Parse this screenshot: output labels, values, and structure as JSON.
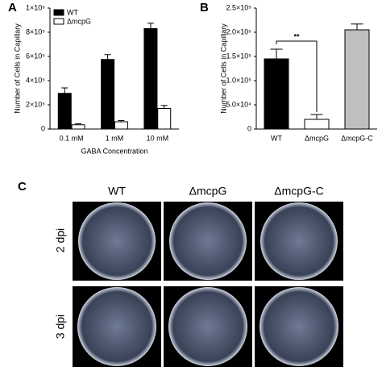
{
  "chart_data": [
    {
      "type": "bar",
      "label": "A",
      "ylabel": "Number of Cells in Capillary",
      "xlabel": "GABA Concentration",
      "categories": [
        "0.1 mM",
        "1 mM",
        "10 mM"
      ],
      "series": [
        {
          "name": "WT",
          "color": "#000000",
          "values": [
            295000,
            575000,
            830000
          ],
          "errors": [
            45000,
            40000,
            45000
          ]
        },
        {
          "name": "ΔmcpG",
          "color": "#ffffff",
          "values": [
            35000,
            60000,
            170000
          ],
          "errors": [
            8000,
            10000,
            25000
          ]
        }
      ],
      "ylim": [
        0,
        1000000
      ],
      "yticks": [
        0,
        {
          "value": 200000,
          "label": "2×10⁵"
        },
        {
          "value": 400000,
          "label": "4×10⁵"
        },
        {
          "value": 600000,
          "label": "6×10⁵"
        },
        {
          "value": 800000,
          "label": "8×10⁵"
        },
        {
          "value": 1000000,
          "label": "1×10⁶"
        }
      ],
      "legend": "upper-left"
    },
    {
      "type": "bar",
      "label": "B",
      "ylabel": "Number of Cells in Capillary",
      "categories": [
        "WT",
        "ΔmcpG",
        "ΔmcpG-C"
      ],
      "values": [
        145000,
        20000,
        205000
      ],
      "errors": [
        20000,
        10000,
        12000
      ],
      "colors": [
        "#000000",
        "#ffffff",
        "#bfbfbf"
      ],
      "annotation": "**",
      "ylim": [
        0,
        250000
      ],
      "yticks": [
        0,
        {
          "value": 50000,
          "label": "5.0×10⁴"
        },
        {
          "value": 100000,
          "label": "1.0×10⁵"
        },
        {
          "value": 150000,
          "label": "1.5×10⁵"
        },
        {
          "value": 200000,
          "label": "2.0×10⁵"
        },
        {
          "value": 250000,
          "label": "2.5×10⁵"
        }
      ]
    }
  ],
  "panel_c": {
    "label": "C",
    "columns": [
      "WT",
      "ΔmcpG",
      "ΔmcpG-C"
    ],
    "rows": [
      "2 dpi",
      "3 dpi"
    ]
  }
}
